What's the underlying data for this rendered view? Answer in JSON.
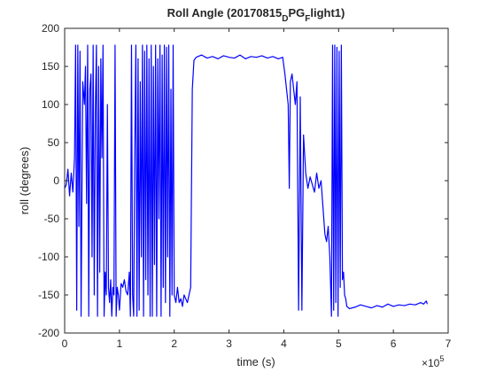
{
  "chart_data": {
    "type": "line",
    "title_parts": [
      "Roll Angle (20170815",
      "D",
      "PG",
      "F",
      "light1)"
    ],
    "xlabel": "time (s)",
    "ylabel": "roll (degrees)",
    "x_exponent": {
      "base": "×10",
      "power": "5"
    },
    "xlim": [
      0,
      700000
    ],
    "xticks": [
      0,
      {
        "value": 100000,
        "label": "1"
      },
      {
        "value": 200000,
        "label": "2"
      },
      {
        "value": 300000,
        "label": "3"
      },
      {
        "value": 400000,
        "label": "4"
      },
      {
        "value": 500000,
        "label": "5"
      },
      {
        "value": 600000,
        "label": "6"
      },
      {
        "value": 700000,
        "label": "7"
      }
    ],
    "ylim": [
      -200,
      200
    ],
    "yticks": [
      -200,
      -150,
      -100,
      -50,
      0,
      50,
      100,
      150,
      200
    ],
    "grid": false,
    "series": [
      {
        "name": "roll",
        "color": "#0000ff",
        "x": [
          0,
          3000,
          6000,
          9000,
          12000,
          15000,
          18000,
          20000,
          22000,
          24000,
          26000,
          28000,
          30000,
          33000,
          36000,
          38000,
          40000,
          42000,
          44000,
          46000,
          48000,
          50000,
          52000,
          54000,
          56000,
          58000,
          60000,
          62000,
          64000,
          66000,
          68000,
          70000,
          72000,
          74000,
          76000,
          78000,
          80000,
          82000,
          84000,
          86000,
          88000,
          90000,
          92000,
          94000,
          96000,
          98000,
          100000,
          103000,
          106000,
          109000,
          112000,
          115000,
          118000,
          120000,
          122000,
          124000,
          126000,
          128000,
          130000,
          132000,
          134000,
          136000,
          138000,
          140000,
          142000,
          144000,
          146000,
          148000,
          150000,
          152000,
          154000,
          156000,
          158000,
          160000,
          162000,
          164000,
          166000,
          168000,
          170000,
          172000,
          174000,
          176000,
          178000,
          180000,
          182000,
          184000,
          186000,
          188000,
          190000,
          192000,
          194000,
          196000,
          198000,
          200000,
          203000,
          206000,
          209000,
          212000,
          215000,
          218000,
          221000,
          224000,
          227000,
          230000,
          233000,
          236000,
          240000,
          250000,
          260000,
          270000,
          280000,
          290000,
          300000,
          310000,
          320000,
          330000,
          340000,
          350000,
          360000,
          370000,
          380000,
          390000,
          398000,
          402000,
          405000,
          408000,
          410000,
          412000,
          415000,
          418000,
          421000,
          424000,
          427000,
          430000,
          433000,
          436000,
          440000,
          444000,
          448000,
          452000,
          456000,
          460000,
          464000,
          468000,
          472000,
          475000,
          478000,
          481000,
          484000,
          487000,
          489000,
          491000,
          493000,
          495000,
          497000,
          499000,
          501000,
          503000,
          505000,
          507000,
          509000,
          511000,
          513000,
          515000,
          520000,
          530000,
          540000,
          550000,
          560000,
          570000,
          580000,
          590000,
          600000,
          610000,
          620000,
          630000,
          640000,
          650000,
          655000,
          660000,
          662000
        ],
        "values": [
          -10,
          -5,
          15,
          -20,
          10,
          -15,
          30,
          178,
          -170,
          178,
          -60,
          170,
          -178,
          130,
          100,
          150,
          -30,
          178,
          -178,
          120,
          140,
          -100,
          178,
          -150,
          90,
          178,
          -178,
          150,
          -120,
          160,
          30,
          178,
          -178,
          -120,
          -150,
          100,
          -140,
          -160,
          -130,
          -178,
          -140,
          -150,
          178,
          -178,
          -140,
          -150,
          -170,
          -135,
          -140,
          -130,
          -145,
          -150,
          -120,
          -178,
          178,
          -150,
          -178,
          40,
          178,
          -178,
          160,
          -170,
          130,
          -100,
          178,
          -178,
          170,
          -130,
          178,
          -150,
          160,
          -178,
          178,
          -178,
          150,
          -110,
          178,
          -178,
          160,
          -50,
          178,
          -178,
          165,
          -140,
          178,
          -160,
          175,
          -100,
          178,
          -178,
          120,
          -150,
          178,
          -150,
          -160,
          -140,
          -160,
          -155,
          -165,
          -150,
          -155,
          -160,
          -150,
          -140,
          120,
          158,
          162,
          165,
          161,
          163,
          160,
          164,
          162,
          161,
          165,
          160,
          163,
          162,
          164,
          161,
          163,
          160,
          162,
          140,
          120,
          100,
          -10,
          130,
          140,
          120,
          100,
          130,
          -170,
          110,
          -170,
          60,
          10,
          -10,
          5,
          -5,
          -15,
          10,
          -10,
          0,
          -40,
          -70,
          -80,
          -60,
          -100,
          -178,
          178,
          -170,
          178,
          -160,
          175,
          -178,
          170,
          -140,
          178,
          -130,
          -120,
          -150,
          -155,
          -165,
          -168,
          -166,
          -163,
          -165,
          -167,
          -164,
          -166,
          -162,
          -165,
          -163,
          -164,
          -162,
          -163,
          -160,
          -162,
          -158,
          -162
        ]
      }
    ]
  }
}
